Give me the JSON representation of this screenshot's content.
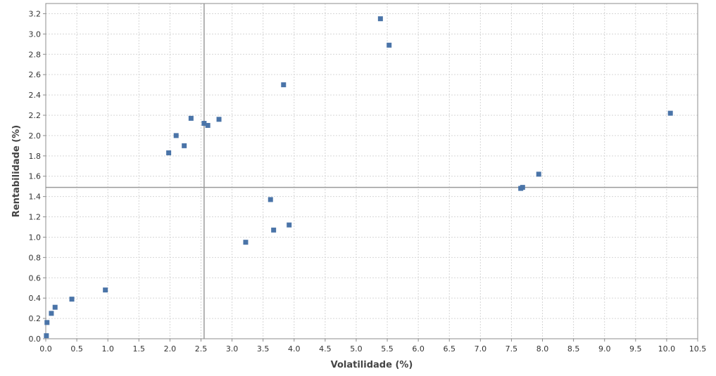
{
  "chart_data": {
    "type": "scatter",
    "xlabel": "Volatilidade (%)",
    "ylabel": "Rentabilidade (%)",
    "xlim": [
      0.0,
      10.5
    ],
    "ylim": [
      0.0,
      3.3
    ],
    "x_ticks": [
      0.0,
      0.5,
      1.0,
      1.5,
      2.0,
      2.5,
      3.0,
      3.5,
      4.0,
      4.5,
      5.0,
      5.5,
      6.0,
      6.5,
      7.0,
      7.5,
      8.0,
      8.5,
      9.0,
      9.5,
      10.0,
      10.5
    ],
    "y_ticks": [
      0.0,
      0.2,
      0.4,
      0.6,
      0.8,
      1.0,
      1.2,
      1.4,
      1.6,
      1.8,
      2.0,
      2.2,
      2.4,
      2.6,
      2.8,
      3.0,
      3.2
    ],
    "x_tick_labels": [
      "0.0",
      "0.5",
      "1.0",
      "1.5",
      "2.0",
      "2.5",
      "3.0",
      "3.5",
      "4.0",
      "4.5",
      "5.0",
      "5.5",
      "6.0",
      "6.5",
      "7.0",
      "7.5",
      "8.0",
      "8.5",
      "9.0",
      "9.5",
      "10.0",
      "10.5"
    ],
    "y_tick_labels": [
      "0.0",
      "0.2",
      "0.4",
      "0.6",
      "0.8",
      "1.0",
      "1.2",
      "1.4",
      "1.6",
      "1.8",
      "2.0",
      "2.2",
      "2.4",
      "2.6",
      "2.8",
      "3.0",
      "3.2"
    ],
    "grid": true,
    "reference_lines": {
      "x": 2.55,
      "y": 1.49
    },
    "marker_color": "#4a74a8",
    "reference_line_color": "#9a9a9a",
    "series": [
      {
        "points": [
          {
            "x": 0.01,
            "y": 0.03
          },
          {
            "x": 0.02,
            "y": 0.16
          },
          {
            "x": 0.09,
            "y": 0.25
          },
          {
            "x": 0.15,
            "y": 0.31
          },
          {
            "x": 0.42,
            "y": 0.39
          },
          {
            "x": 0.96,
            "y": 0.48
          },
          {
            "x": 1.98,
            "y": 1.83
          },
          {
            "x": 2.1,
            "y": 2.0
          },
          {
            "x": 2.23,
            "y": 1.9
          },
          {
            "x": 2.34,
            "y": 2.17
          },
          {
            "x": 2.55,
            "y": 2.12
          },
          {
            "x": 2.61,
            "y": 2.1
          },
          {
            "x": 2.79,
            "y": 2.16
          },
          {
            "x": 3.22,
            "y": 0.95
          },
          {
            "x": 3.62,
            "y": 1.37
          },
          {
            "x": 3.67,
            "y": 1.07
          },
          {
            "x": 3.83,
            "y": 2.5
          },
          {
            "x": 3.92,
            "y": 1.12
          },
          {
            "x": 5.39,
            "y": 3.15
          },
          {
            "x": 5.53,
            "y": 2.89
          },
          {
            "x": 7.65,
            "y": 1.48
          },
          {
            "x": 7.68,
            "y": 1.49
          },
          {
            "x": 7.94,
            "y": 1.62
          },
          {
            "x": 10.06,
            "y": 2.22
          }
        ]
      }
    ]
  }
}
